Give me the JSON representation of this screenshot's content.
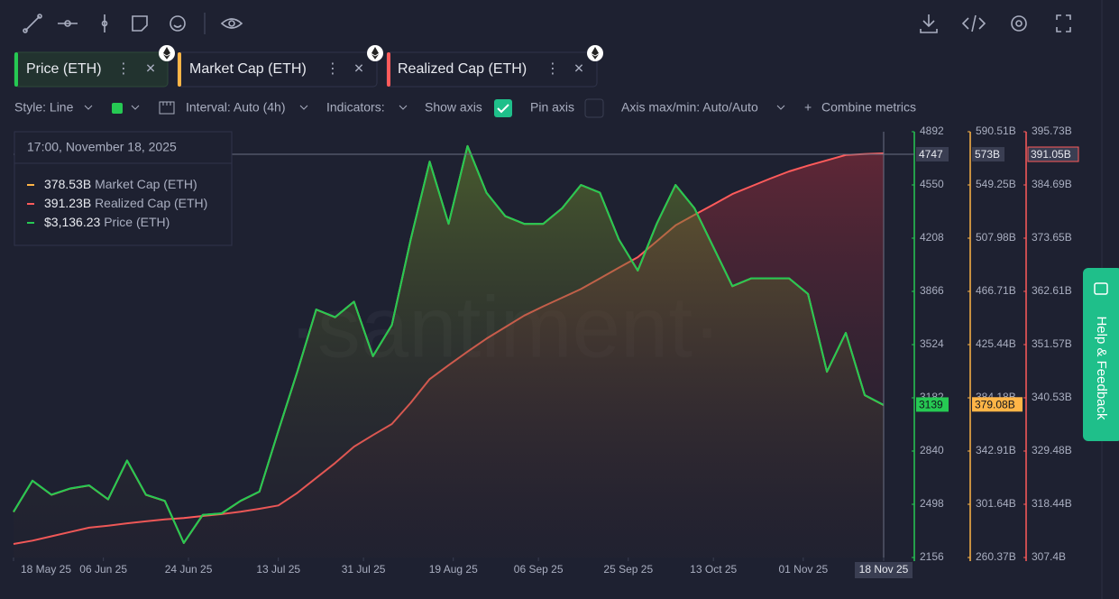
{
  "toolbar": {
    "style": "Style: Line",
    "interval": "Interval: Auto (4h)",
    "indicators": "Indicators:",
    "show_axis": "Show axis",
    "pin_axis": "Pin axis",
    "axis_minmax": "Axis max/min: Auto/Auto",
    "combine": "Combine metrics"
  },
  "help": "Help & Feedback",
  "watermark": "·santiment·",
  "tooltip": {
    "date": "17:00, November 18, 2025",
    "market_cap": {
      "value": 378.53,
      "label": "378.53B"
    },
    "realized_cap": {
      "value": 391.23,
      "label": "391.23B"
    },
    "price": {
      "value": 3136.23,
      "label": "$3,136.23"
    }
  },
  "crosshair": {
    "price": 4747,
    "market_cap": {
      "value": 573,
      "label": "573B"
    },
    "realized_cap": {
      "value": 391.05,
      "label": "391.05B"
    }
  },
  "last": {
    "price": 3139,
    "market_cap": {
      "value": 379.08,
      "label": "379.08B"
    }
  },
  "chart_data": {
    "type": "line",
    "x": [
      "2025-05-18",
      "2025-05-22",
      "2025-05-26",
      "2025-05-30",
      "2025-06-03",
      "2025-06-07",
      "2025-06-11",
      "2025-06-15",
      "2025-06-19",
      "2025-06-23",
      "2025-06-27",
      "2025-07-01",
      "2025-07-05",
      "2025-07-09",
      "2025-07-13",
      "2025-07-17",
      "2025-07-21",
      "2025-07-25",
      "2025-07-29",
      "2025-08-02",
      "2025-08-06",
      "2025-08-10",
      "2025-08-14",
      "2025-08-18",
      "2025-08-22",
      "2025-08-26",
      "2025-08-30",
      "2025-09-03",
      "2025-09-07",
      "2025-09-11",
      "2025-09-15",
      "2025-09-19",
      "2025-09-23",
      "2025-09-27",
      "2025-10-01",
      "2025-10-05",
      "2025-10-09",
      "2025-10-13",
      "2025-10-17",
      "2025-10-21",
      "2025-10-25",
      "2025-10-29",
      "2025-11-02",
      "2025-11-06",
      "2025-11-10",
      "2025-11-14",
      "2025-11-18"
    ],
    "xlim": [
      "2025-05-18",
      "2025-11-18"
    ],
    "xticks": [
      {
        "value": "2025-05-18",
        "label": "18 May 25"
      },
      {
        "value": "2025-06-06",
        "label": "06 Jun 25"
      },
      {
        "value": "2025-06-24",
        "label": "24 Jun 25"
      },
      {
        "value": "2025-07-13",
        "label": "13 Jul 25"
      },
      {
        "value": "2025-07-31",
        "label": "31 Jul 25"
      },
      {
        "value": "2025-08-19",
        "label": "19 Aug 25"
      },
      {
        "value": "2025-09-06",
        "label": "06 Sep 25"
      },
      {
        "value": "2025-09-25",
        "label": "25 Sep 25"
      },
      {
        "value": "2025-10-13",
        "label": "13 Oct 25"
      },
      {
        "value": "2025-11-01",
        "label": "01 Nov 25"
      },
      {
        "value": "2025-11-18",
        "label": "18 Nov 25"
      }
    ],
    "ylim": [
      2156,
      4892
    ],
    "yticks": [
      4892,
      4550,
      4208,
      3866,
      3524,
      3182,
      2840,
      2498,
      2156
    ],
    "y2lim": [
      260.37,
      590.51
    ],
    "y2ticks": [
      {
        "value": 590.51,
        "label": "590.51B"
      },
      {
        "value": 549.25,
        "label": "549.25B"
      },
      {
        "value": 507.98,
        "label": "507.98B"
      },
      {
        "value": 466.71,
        "label": "466.71B"
      },
      {
        "value": 425.44,
        "label": "425.44B"
      },
      {
        "value": 384.18,
        "label": "384.18B"
      },
      {
        "value": 342.91,
        "label": "342.91B"
      },
      {
        "value": 301.64,
        "label": "301.64B"
      },
      {
        "value": 260.37,
        "label": "260.37B"
      }
    ],
    "y3lim": [
      307.4,
      395.73
    ],
    "y3ticks": [
      {
        "value": 395.73,
        "label": "395.73B"
      },
      {
        "value": 384.69,
        "label": "384.69B"
      },
      {
        "value": 373.65,
        "label": "373.65B"
      },
      {
        "value": 362.61,
        "label": "362.61B"
      },
      {
        "value": 351.57,
        "label": "351.57B"
      },
      {
        "value": 340.53,
        "label": "340.53B"
      },
      {
        "value": 329.48,
        "label": "329.48B"
      },
      {
        "value": 318.44,
        "label": "318.44B"
      },
      {
        "value": 307.4,
        "label": "307.4B"
      }
    ],
    "series": [
      {
        "name": "Price (ETH)",
        "color": "#26c953",
        "axis": "y",
        "values": [
          2450,
          2650,
          2560,
          2600,
          2620,
          2530,
          2780,
          2560,
          2520,
          2250,
          2430,
          2440,
          2520,
          2580,
          2970,
          3350,
          3750,
          3700,
          3800,
          3450,
          3650,
          4200,
          4700,
          4300,
          4800,
          4500,
          4350,
          4300,
          4300,
          4400,
          4550,
          4500,
          4200,
          4000,
          4300,
          4550,
          4400,
          4150,
          3900,
          3950,
          3950,
          3950,
          3850,
          3350,
          3600,
          3200,
          3136.23
        ]
      },
      {
        "name": "Market Cap (ETH)",
        "color": "#ffb547",
        "axis": "y2",
        "values": [
          295.7,
          319.9,
          309.0,
          313.8,
          316.2,
          305.4,
          335.5,
          309.0,
          304.2,
          271.6,
          293.3,
          294.5,
          304.2,
          311.4,
          358.5,
          404.3,
          452.6,
          446.6,
          458.7,
          416.4,
          440.6,
          506.9,
          567.3,
          519.0,
          579.4,
          543.2,
          525.0,
          519.0,
          519.0,
          531.1,
          549.2,
          543.2,
          506.9,
          482.8,
          519.0,
          549.2,
          531.1,
          500.9,
          470.7,
          476.8,
          476.8,
          476.8,
          464.7,
          404.3,
          434.5,
          386.2,
          378.53
        ]
      },
      {
        "name": "Realized Cap (ETH)",
        "color": "#ff5b5b",
        "axis": "y3",
        "values": [
          310.2,
          310.9,
          311.8,
          312.7,
          313.6,
          314.0,
          314.5,
          314.9,
          315.3,
          315.6,
          316.0,
          316.4,
          316.9,
          317.5,
          318.2,
          320.8,
          323.9,
          327.0,
          330.4,
          332.8,
          335.1,
          339.5,
          344.4,
          347.3,
          350.1,
          352.8,
          355.2,
          357.6,
          359.5,
          361.3,
          363.1,
          365.3,
          367.5,
          369.7,
          373.0,
          376.3,
          378.5,
          380.6,
          382.8,
          384.4,
          386.0,
          387.5,
          388.7,
          389.8,
          390.9,
          391.1,
          391.23
        ]
      }
    ]
  }
}
